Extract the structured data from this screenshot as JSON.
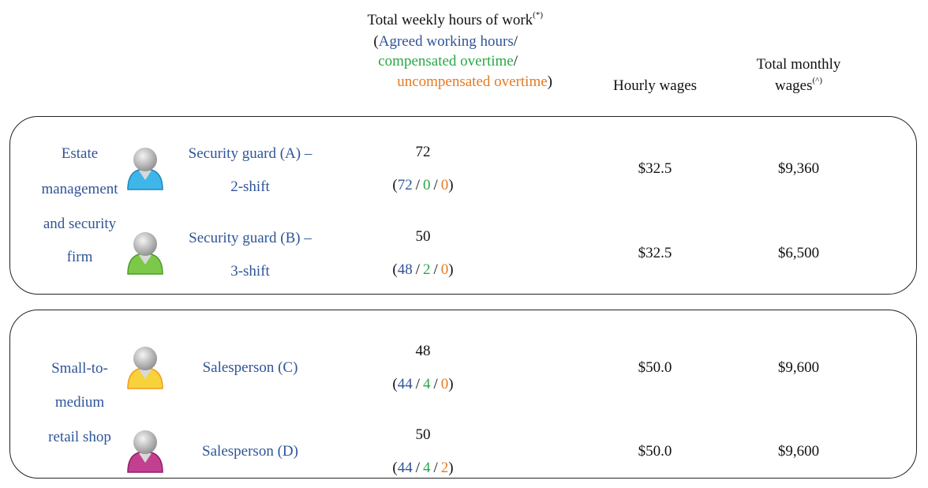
{
  "header": {
    "hours": {
      "title": "Total weekly hours of work",
      "note": "(*)",
      "open": "(",
      "agreed": "Agreed working hours",
      "separator": "/",
      "compensated": "compensated overtime",
      "uncompensated": "uncompensated overtime",
      "close": ")"
    },
    "hourly": "Hourly wages",
    "monthly": [
      "Total monthly",
      "wages"
    ],
    "monthly_note": "(^)"
  },
  "groups": [
    {
      "industry": [
        "Estate",
        "management",
        "and security",
        "firm"
      ],
      "rows": [
        {
          "occupation": [
            "Security guard (A) –",
            "2-shift"
          ],
          "total": 72,
          "agreed": 72,
          "compensated": 0,
          "uncompensated": 0,
          "hourly": "$32.5",
          "monthly": "$9,360"
        },
        {
          "occupation": [
            "Security guard (B) –",
            "3-shift"
          ],
          "total": 50,
          "agreed": 48,
          "compensated": 2,
          "uncompensated": 0,
          "hourly": "$32.5",
          "monthly": "$6,500"
        }
      ]
    },
    {
      "industry": [
        "Small-to-",
        "medium",
        "retail shop"
      ],
      "rows": [
        {
          "occupation": [
            "Salesperson (C)"
          ],
          "total": 48,
          "agreed": 44,
          "compensated": 4,
          "uncompensated": 0,
          "hourly": "$50.0",
          "monthly": "$9,600"
        },
        {
          "occupation": [
            "Salesperson (D)"
          ],
          "total": 50,
          "agreed": 44,
          "compensated": 4,
          "uncompensated": 2,
          "hourly": "$50.0",
          "monthly": "$9,600"
        }
      ]
    }
  ]
}
